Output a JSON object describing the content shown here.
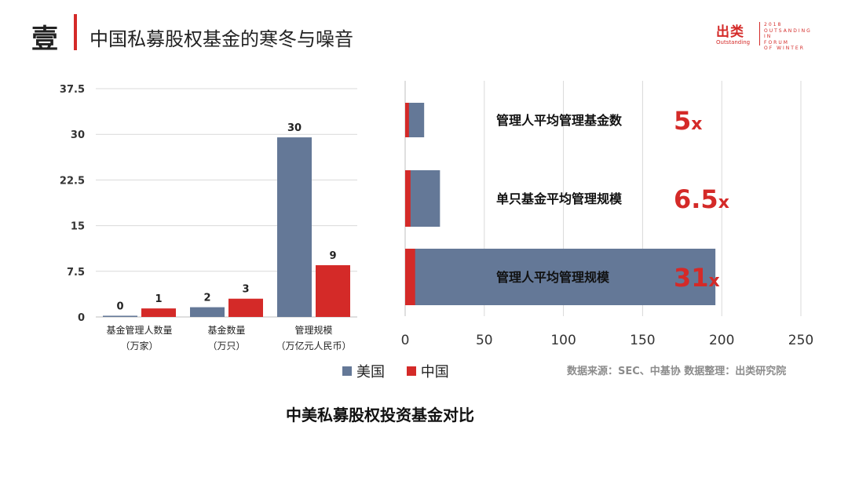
{
  "header": {
    "section_char": "壹",
    "title": "中国私募股权基金的寒冬与噪音",
    "logo_cn": "出类",
    "logo_en": "Outstanding",
    "logo_forum": "2018\nOUTSANDING\nIN\nFORUM\nOF WINTER"
  },
  "chart_data": [
    {
      "type": "bar",
      "categories": [
        "基金管理人数量\n（万家）",
        "基金数量\n（万只）",
        "管理规模\n（万亿元人民币）"
      ],
      "series": [
        {
          "name": "美国",
          "values": [
            0.2,
            1.6,
            29.5
          ],
          "labels": [
            "0",
            "2",
            "30"
          ]
        },
        {
          "name": "中国",
          "values": [
            1.4,
            3.0,
            8.5
          ],
          "labels": [
            "1",
            "3",
            "9"
          ]
        }
      ],
      "yticks": [
        "0",
        "7.5",
        "15",
        "22.5",
        "30",
        "37.5"
      ],
      "ylim": [
        0,
        37.5
      ],
      "grid": true
    },
    {
      "type": "bar",
      "orientation": "horizontal",
      "categories": [
        "管理人平均管理基金数",
        "单只基金平均管理规模",
        "管理人平均管理规模"
      ],
      "series": [
        {
          "name": "中国",
          "values": [
            2.4,
            3.4,
            6.3
          ]
        },
        {
          "name": "美国",
          "values": [
            12,
            22,
            196
          ]
        }
      ],
      "ratios": [
        {
          "num": "5",
          "x": "x"
        },
        {
          "num": "6.5",
          "x": "x"
        },
        {
          "num": "31",
          "x": "x"
        }
      ],
      "xticks": [
        "0",
        "50",
        "100",
        "150",
        "200",
        "250"
      ],
      "xlim": [
        0,
        250
      ],
      "grid": true
    }
  ],
  "legend": [
    {
      "label": "美国",
      "color": "#647897"
    },
    {
      "label": "中国",
      "color": "#d42a28"
    }
  ],
  "colors": {
    "us": "#647897",
    "cn": "#d42a28"
  },
  "source": "数据来源：SEC、中基协  数据整理：出类研究院",
  "caption": "中美私募股权投资基金对比"
}
